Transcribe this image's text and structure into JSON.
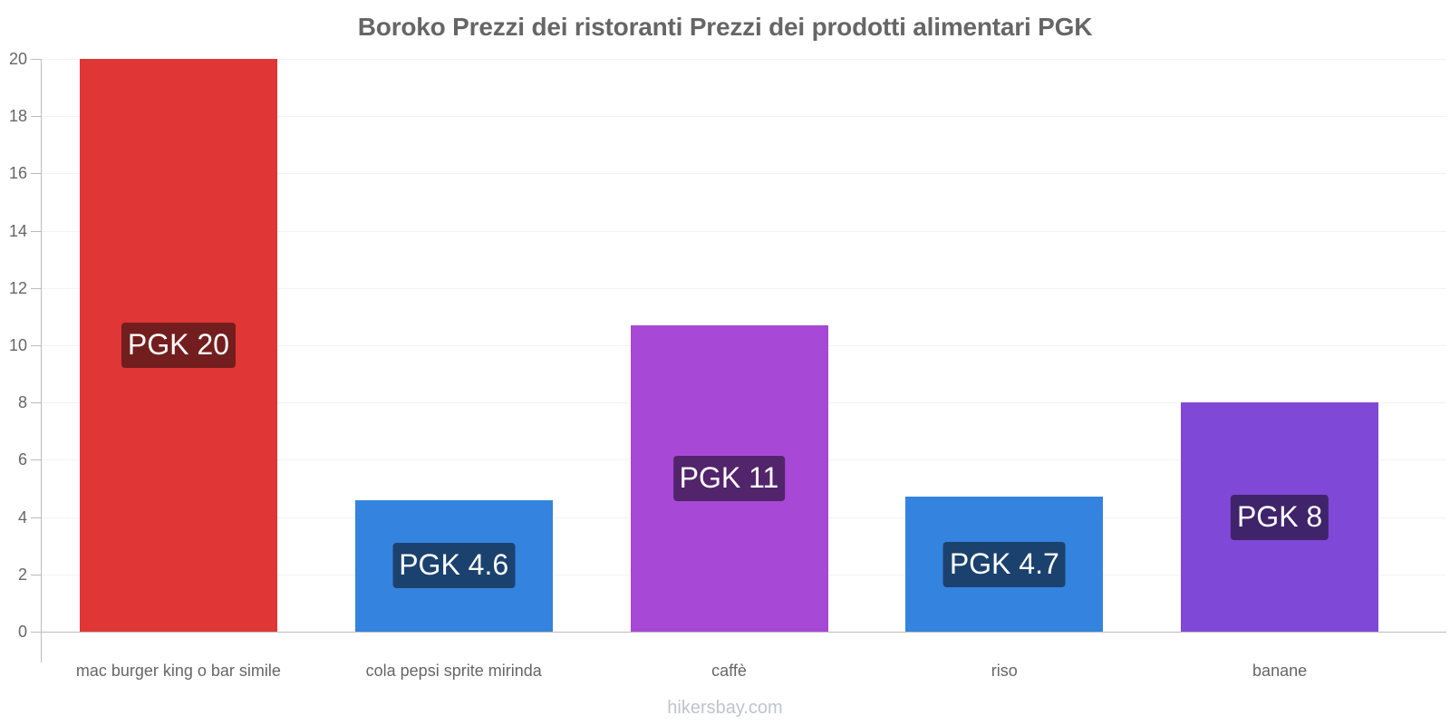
{
  "chart_data": {
    "type": "bar",
    "title": "Boroko Prezzi dei ristoranti Prezzi dei prodotti alimentari PGK",
    "xlabel": "",
    "ylabel": "",
    "ylim": [
      0,
      20
    ],
    "yticks": [
      0,
      2,
      4,
      6,
      8,
      10,
      12,
      14,
      16,
      18,
      20
    ],
    "grid": true,
    "legend": null,
    "categories": [
      "mac burger king o bar simile",
      "cola pepsi sprite mirinda",
      "caffè",
      "riso",
      "banane"
    ],
    "values": [
      20,
      4.6,
      10.7,
      4.7,
      8
    ],
    "data_labels": [
      "PGK 20",
      "PGK 4.6",
      "PGK 11",
      "PGK 4.7",
      "PGK 8"
    ],
    "bar_colors": [
      "#e03636",
      "#3483de",
      "#a748d6",
      "#3483de",
      "#8048d6"
    ],
    "label_bg_colors": [
      "#731e1e",
      "#1b426e",
      "#52246b",
      "#1b426e",
      "#40246b"
    ]
  },
  "watermark": "hikersbay.com"
}
